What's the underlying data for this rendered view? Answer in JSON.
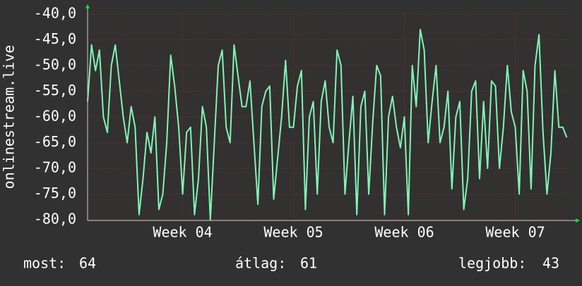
{
  "chart_data": {
    "type": "line",
    "ylabel": "onlinestream.live",
    "xlim": [
      0,
      30.5
    ],
    "xticks": [
      {
        "value": 6,
        "label": "Week 04"
      },
      {
        "value": 13,
        "label": "Week 05"
      },
      {
        "value": 20,
        "label": "Week 06"
      },
      {
        "value": 27,
        "label": "Week 07"
      }
    ],
    "ylim": [
      -80,
      -40
    ],
    "yticks": [
      {
        "value": -40,
        "label": "-40,0"
      },
      {
        "value": -45,
        "label": "-45,0"
      },
      {
        "value": -50,
        "label": "-50,0"
      },
      {
        "value": -55,
        "label": "-55,0"
      },
      {
        "value": -60,
        "label": "-60,0"
      },
      {
        "value": -65,
        "label": "-65,0"
      },
      {
        "value": -70,
        "label": "-70,0"
      },
      {
        "value": -75,
        "label": "-75,0"
      },
      {
        "value": -80,
        "label": "-80,0"
      }
    ],
    "grid": true,
    "x": [
      0,
      0.25,
      0.5,
      0.75,
      1,
      1.25,
      1.5,
      1.75,
      2,
      2.25,
      2.5,
      2.75,
      3,
      3.25,
      3.5,
      3.75,
      4,
      4.25,
      4.5,
      4.75,
      5,
      5.25,
      5.5,
      5.75,
      6,
      6.25,
      6.5,
      6.75,
      7,
      7.25,
      7.5,
      7.75,
      8,
      8.25,
      8.5,
      8.75,
      9,
      9.25,
      9.5,
      9.75,
      10,
      10.25,
      10.5,
      10.75,
      11,
      11.25,
      11.5,
      11.75,
      12,
      12.25,
      12.5,
      12.75,
      13,
      13.25,
      13.5,
      13.75,
      14,
      14.25,
      14.5,
      14.75,
      15,
      15.25,
      15.5,
      15.75,
      16,
      16.25,
      16.5,
      16.75,
      17,
      17.25,
      17.5,
      17.75,
      18,
      18.25,
      18.5,
      18.75,
      19,
      19.25,
      19.5,
      19.75,
      20,
      20.25,
      20.5,
      20.75,
      21,
      21.25,
      21.5,
      21.75,
      22,
      22.25,
      22.5,
      22.75,
      23,
      23.25,
      23.5,
      23.75,
      24,
      24.25,
      24.5,
      24.75,
      25,
      25.25,
      25.5,
      25.75,
      26,
      26.25,
      26.5,
      26.75,
      27,
      27.25,
      27.5,
      27.75,
      28,
      28.25,
      28.5,
      28.75,
      29,
      29.25,
      29.5,
      29.75,
      30,
      30.25
    ],
    "series": [
      {
        "color": "#80f5b4",
        "values": [
          -57,
          -46,
          -51,
          -47,
          -60,
          -63,
          -50,
          -46,
          -53,
          -60,
          -65,
          -58,
          -62,
          -79,
          -72,
          -63,
          -67,
          -60,
          -78,
          -75,
          -65,
          -48,
          -54,
          -62,
          -75,
          -63,
          -62,
          -79,
          -72,
          -58,
          -62,
          -80,
          -65,
          -50,
          -47,
          -62,
          -65,
          -46,
          -52,
          -58,
          -58,
          -53,
          -65,
          -77,
          -58,
          -55,
          -54,
          -76,
          -68,
          -60,
          -49,
          -62,
          -62,
          -54,
          -51,
          -78,
          -60,
          -57,
          -75,
          -57,
          -53,
          -62,
          -65,
          -47,
          -50,
          -75,
          -65,
          -56,
          -79,
          -58,
          -55,
          -75,
          -61,
          -50,
          -52,
          -79,
          -60,
          -56,
          -62,
          -66,
          -60,
          -79,
          -50,
          -58,
          -43,
          -47,
          -65,
          -57,
          -50,
          -65,
          -62,
          -55,
          -74,
          -60,
          -57,
          -78,
          -72,
          -55,
          -53,
          -72,
          -57,
          -70,
          -53,
          -54,
          -70,
          -62,
          -50,
          -59,
          -62,
          -75,
          -51,
          -55,
          -74,
          -50,
          -44,
          -63,
          -75,
          -67,
          -51,
          -62,
          -62,
          -64
        ]
      }
    ]
  },
  "footer": [
    {
      "label": "most:",
      "value": 64
    },
    {
      "label": "átlag:",
      "value": 61
    },
    {
      "label": "legjobb:",
      "value": 43
    }
  ]
}
